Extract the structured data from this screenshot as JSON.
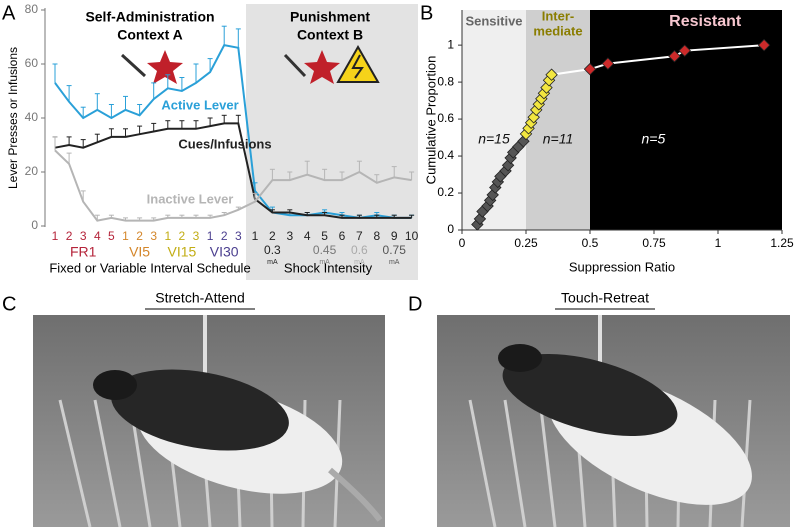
{
  "chart_data": [
    {
      "type": "line",
      "panel": "A",
      "titles": [
        [
          "Self-Administration",
          "Context A"
        ],
        [
          "Punishment",
          "Context B"
        ]
      ],
      "ylabel": "Lever Presses or Infusions",
      "xlabels": [
        "Fixed or Variable Interval Schedule",
        "Shock Intensity"
      ],
      "categories": [
        "1",
        "2",
        "3",
        "4",
        "5",
        "1",
        "2",
        "3",
        "1",
        "2",
        "3",
        "1",
        "2",
        "3",
        "1",
        "2",
        "3",
        "4",
        "5",
        "6",
        "7",
        "8",
        "9",
        "10"
      ],
      "groups": [
        {
          "label": "FR1",
          "color": "#b5243a",
          "sessions": 5
        },
        {
          "label": "VI5",
          "color": "#d4862a",
          "sessions": 3
        },
        {
          "label": "VI15",
          "color": "#c2ad14",
          "sessions": 3
        },
        {
          "label": "VI30",
          "color": "#4b3f8f",
          "sessions": 3
        },
        {
          "color": "#222222",
          "sessions": 10
        }
      ],
      "shock_labels": [
        {
          "session": 2,
          "label": "0.3",
          "color": "#222222"
        },
        {
          "session": 5,
          "label": "0.45",
          "color": "#777777"
        },
        {
          "session": 7,
          "label": "0.6",
          "color": "#aaaaaa"
        },
        {
          "session": 9,
          "label": "0.75",
          "color": "#555555"
        }
      ],
      "shock_unit": "mA",
      "ylim": [
        0,
        80
      ],
      "yticks": [
        0,
        20,
        40,
        60,
        80
      ],
      "series": [
        {
          "name": "Active Lever",
          "color": "#2aa0d8",
          "values": [
            53,
            46,
            40,
            43,
            40,
            43,
            41,
            47,
            51,
            50,
            53,
            57,
            67,
            66,
            13,
            5,
            4,
            4,
            5,
            4,
            3,
            4,
            3,
            3
          ],
          "errors": [
            7,
            6,
            4,
            6,
            5,
            5,
            4,
            6,
            5,
            5,
            7,
            5,
            7,
            7,
            3,
            2,
            1,
            1,
            1,
            1,
            1,
            1,
            1,
            1
          ]
        },
        {
          "name": "Cues/Infusions",
          "color": "#222222",
          "values": [
            29,
            30,
            29,
            31,
            33,
            33,
            34,
            35,
            36,
            36,
            36,
            37,
            38,
            38,
            10,
            5,
            5,
            4,
            4,
            3,
            3,
            3,
            3,
            3
          ],
          "errors": [
            4,
            3,
            3,
            3,
            3,
            3,
            3,
            3,
            3,
            3,
            3,
            3,
            3,
            3,
            2,
            1,
            1,
            1,
            1,
            1,
            1,
            1,
            1,
            1
          ]
        },
        {
          "name": "Inactive Lever",
          "color": "#b5b5b5",
          "values": [
            28,
            23,
            9,
            2,
            3,
            2,
            2,
            2,
            3,
            3,
            3,
            3,
            4,
            6,
            9,
            17,
            17,
            19,
            17,
            17,
            20,
            16,
            18,
            17
          ],
          "errors": [
            5,
            4,
            4,
            2,
            1,
            1,
            1,
            1,
            1,
            1,
            1,
            1,
            1,
            1,
            3,
            4,
            3,
            5,
            4,
            3,
            4,
            3,
            4,
            3
          ]
        }
      ]
    },
    {
      "type": "scatter",
      "panel": "B",
      "xlabel": "Suppression Ratio",
      "ylabel": "Cumulative Proportion",
      "xlim": [
        0,
        1.25
      ],
      "ylim": [
        0,
        1.19
      ],
      "xticks": [
        0,
        0.25,
        0.5,
        0.75,
        1,
        1.25
      ],
      "yticks": [
        0,
        0.2,
        0.4,
        0.6,
        0.8,
        1
      ],
      "line_color": "#ffffff",
      "regions": [
        {
          "label": [
            "Sensitive"
          ],
          "label_color": "#666666",
          "n_label": "n=15",
          "n_color": "#111111",
          "from": 0,
          "to": 0.25,
          "color": "#efefef"
        },
        {
          "label": [
            "Inter-",
            "mediate"
          ],
          "label_color": "#8a7d00",
          "n_label": "n=11",
          "n_color": "#111111",
          "from": 0.25,
          "to": 0.5,
          "color": "#cfcfcf"
        },
        {
          "label": [
            "Resistant"
          ],
          "label_color": "#f6c6cf",
          "n_label": "n=5",
          "n_color": "#ffffff",
          "from": 0.5,
          "to": 1.25,
          "color": "#000000"
        }
      ],
      "series": [
        {
          "color": "#555555",
          "x": [
            0.06,
            0.07,
            0.08,
            0.1,
            0.11,
            0.12,
            0.13,
            0.14,
            0.15,
            0.17,
            0.18,
            0.19,
            0.2,
            0.22,
            0.24
          ],
          "values": [
            0.03,
            0.06,
            0.1,
            0.13,
            0.16,
            0.19,
            0.23,
            0.26,
            0.29,
            0.32,
            0.35,
            0.39,
            0.42,
            0.45,
            0.48
          ]
        },
        {
          "color": "#f2e640",
          "x": [
            0.25,
            0.26,
            0.27,
            0.28,
            0.29,
            0.3,
            0.31,
            0.32,
            0.33,
            0.34,
            0.35
          ],
          "values": [
            0.52,
            0.55,
            0.58,
            0.61,
            0.65,
            0.68,
            0.71,
            0.74,
            0.77,
            0.81,
            0.84
          ]
        },
        {
          "color": "#cc2a2a",
          "x": [
            0.5,
            0.57,
            0.83,
            0.87,
            1.18
          ],
          "values": [
            0.87,
            0.9,
            0.94,
            0.97,
            1.0
          ]
        }
      ]
    }
  ],
  "photos": [
    {
      "panel": "C",
      "title": "Stretch-Attend"
    },
    {
      "panel": "D",
      "title": "Touch-Retreat"
    }
  ]
}
